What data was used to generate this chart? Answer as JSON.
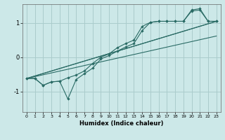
{
  "xlabel": "Humidex (Indice chaleur)",
  "ylabel": "",
  "bg_color": "#cce8e8",
  "grid_color": "#aacccc",
  "line_color": "#2a6b65",
  "xlim": [
    -0.5,
    23.5
  ],
  "ylim": [
    -1.6,
    1.55
  ],
  "yticks": [
    -1,
    0,
    1
  ],
  "xticks": [
    0,
    1,
    2,
    3,
    4,
    5,
    6,
    7,
    8,
    9,
    10,
    11,
    12,
    13,
    14,
    15,
    16,
    17,
    18,
    19,
    20,
    21,
    22,
    23
  ],
  "line1_x": [
    0,
    1,
    2,
    3,
    4,
    5,
    6,
    7,
    8,
    9,
    10,
    11,
    12,
    13,
    14,
    15,
    16,
    17,
    18,
    19,
    20,
    21,
    22,
    23
  ],
  "line1_y": [
    -0.62,
    -0.62,
    -0.82,
    -0.72,
    -0.7,
    -1.22,
    -0.65,
    -0.48,
    -0.32,
    -0.05,
    0.05,
    0.18,
    0.3,
    0.4,
    0.78,
    1.02,
    1.05,
    1.05,
    1.05,
    1.05,
    1.38,
    1.42,
    1.05,
    1.05
  ],
  "line2_x": [
    0,
    1,
    2,
    3,
    4,
    5,
    6,
    7,
    8,
    9,
    10,
    11,
    12,
    13,
    14,
    15,
    16,
    17,
    18,
    19,
    20,
    21,
    22,
    23
  ],
  "line2_y": [
    -0.62,
    -0.62,
    -0.82,
    -0.72,
    -0.7,
    -0.6,
    -0.52,
    -0.4,
    -0.18,
    0.0,
    0.1,
    0.28,
    0.4,
    0.5,
    0.9,
    1.02,
    1.05,
    1.05,
    1.05,
    1.05,
    1.35,
    1.38,
    1.05,
    1.05
  ],
  "line3_x": [
    0,
    23
  ],
  "line3_y": [
    -0.62,
    1.05
  ],
  "line4_x": [
    0,
    23
  ],
  "line4_y": [
    -0.62,
    1.05
  ],
  "line5_x": [
    0,
    23
  ],
  "line5_y": [
    -0.62,
    0.62
  ]
}
